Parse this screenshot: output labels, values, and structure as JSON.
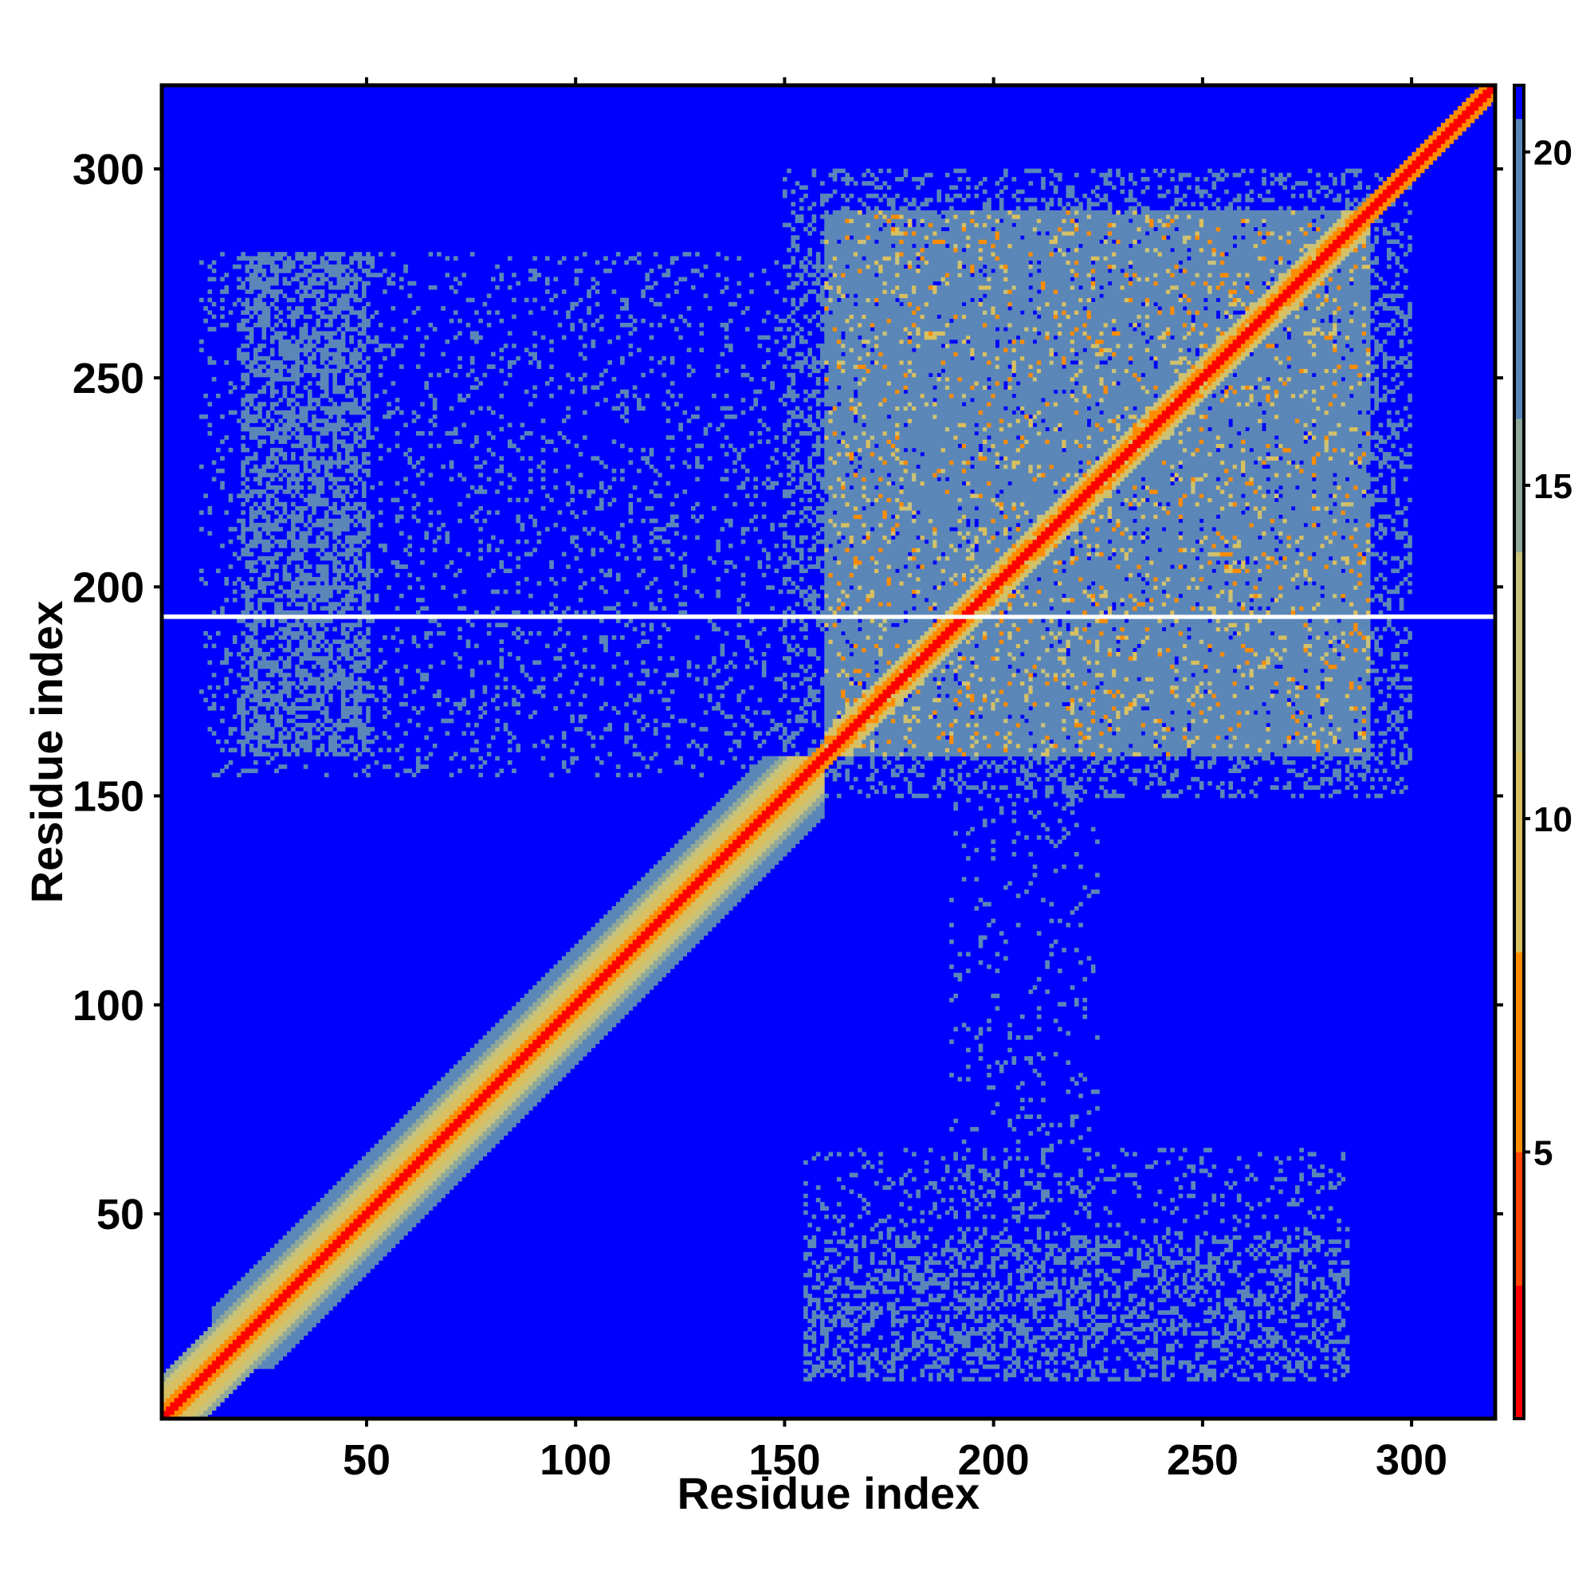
{
  "chart_data": {
    "type": "heatmap",
    "title": "",
    "xlabel": "Residue index",
    "ylabel": "Residue index",
    "xlim": [
      1,
      320
    ],
    "ylim": [
      1,
      320
    ],
    "x_ticks": [
      50,
      100,
      150,
      200,
      250,
      300
    ],
    "y_ticks": [
      50,
      100,
      150,
      200,
      250,
      300
    ],
    "grid": false,
    "colorbar": {
      "ticks": [
        5,
        10,
        15,
        20
      ],
      "range": [
        1,
        21
      ],
      "colors": {
        "diagonal": "#ff0000",
        "near": "#ff8c00",
        "mid": "#c8c27a",
        "far": "#5b87b8",
        "background": "#0000ff"
      }
    },
    "description_regions": {
      "diagonal_band": {
        "from": 1,
        "to": 320,
        "core_value": 1,
        "band_value": 12
      },
      "contact_block": {
        "x": [
          160,
          290
        ],
        "y": [
          160,
          290
        ],
        "typical_value": 18
      },
      "off_diagonal_patch_top_left": {
        "x": [
          10,
          160
        ],
        "y": [
          155,
          280
        ],
        "typical_value": 19
      },
      "off_diagonal_patch_bottom_right": {
        "x": [
          155,
          285
        ],
        "y": [
          10,
          65
        ],
        "typical_value": 19
      },
      "gap_row": 193
    }
  }
}
